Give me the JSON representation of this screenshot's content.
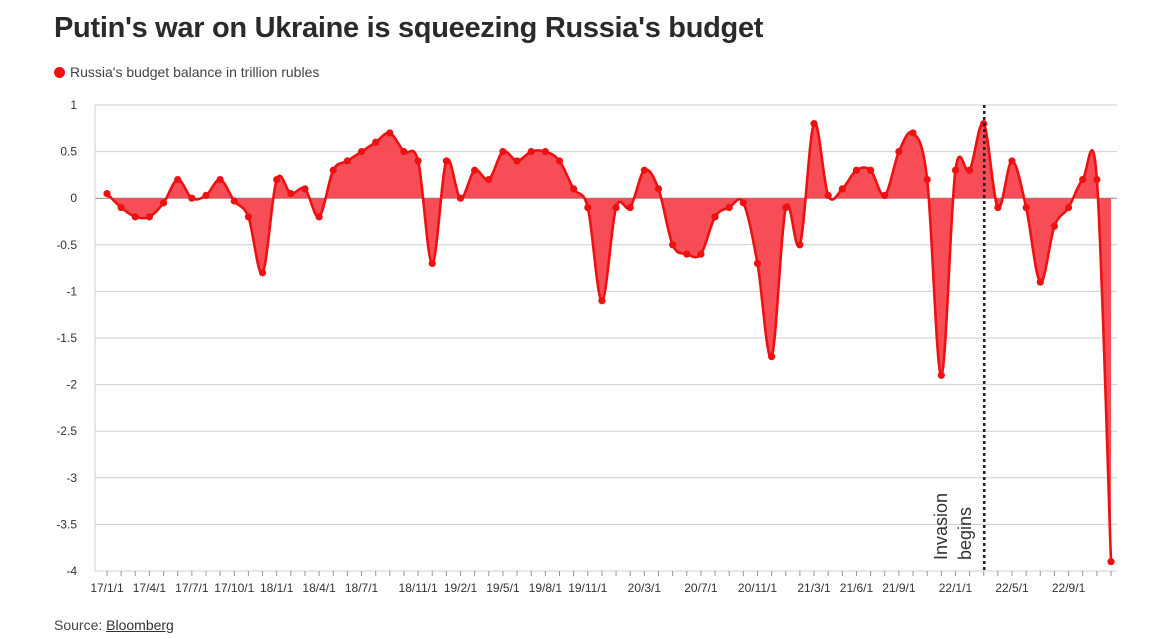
{
  "chart_data": {
    "type": "area",
    "title": "Putin's war on Ukraine is squeezing Russia's budget",
    "legend": "Russia's budget balance in trillion rubles",
    "source_label": "Source:",
    "source_name": "Bloomberg",
    "ylim": [
      -4,
      1
    ],
    "yticks": [
      1,
      0.5,
      0,
      -0.5,
      -1,
      -1.5,
      -2,
      -2.5,
      -3,
      -3.5,
      -4
    ],
    "ytick_labels": [
      "1",
      "0.5",
      "0",
      "-0.5",
      "-1",
      "-1.5",
      "-2",
      "-2.5",
      "-3",
      "-3.5",
      "-4"
    ],
    "xticks": [
      {
        "i": 0,
        "label": "17/1/1"
      },
      {
        "i": 3,
        "label": "17/4/1"
      },
      {
        "i": 6,
        "label": "17/7/1"
      },
      {
        "i": 9,
        "label": "17/10/1"
      },
      {
        "i": 12,
        "label": "18/1/1"
      },
      {
        "i": 15,
        "label": "18/4/1"
      },
      {
        "i": 18,
        "label": "18/7/1"
      },
      {
        "i": 22,
        "label": "18/11/1"
      },
      {
        "i": 25,
        "label": "19/2/1"
      },
      {
        "i": 28,
        "label": "19/5/1"
      },
      {
        "i": 31,
        "label": "19/8/1"
      },
      {
        "i": 34,
        "label": "19/11/1"
      },
      {
        "i": 38,
        "label": "20/3/1"
      },
      {
        "i": 42,
        "label": "20/7/1"
      },
      {
        "i": 46,
        "label": "20/11/1"
      },
      {
        "i": 50,
        "label": "21/3/1"
      },
      {
        "i": 53,
        "label": "21/6/1"
      },
      {
        "i": 56,
        "label": "21/9/1"
      },
      {
        "i": 60,
        "label": "22/1/1"
      },
      {
        "i": 64,
        "label": "22/5/1"
      },
      {
        "i": 68,
        "label": "22/9/1"
      }
    ],
    "series": [
      {
        "name": "Russia's budget balance in trillion rubles",
        "values": [
          0.05,
          -0.1,
          -0.2,
          -0.2,
          -0.05,
          0.2,
          0.0,
          0.03,
          0.2,
          -0.03,
          -0.2,
          -0.8,
          0.2,
          0.05,
          0.1,
          -0.2,
          0.3,
          0.4,
          0.5,
          0.6,
          0.7,
          0.5,
          0.4,
          -0.7,
          0.4,
          0.0,
          0.3,
          0.2,
          0.5,
          0.4,
          0.5,
          0.5,
          0.4,
          0.1,
          -0.1,
          -1.1,
          -0.1,
          -0.1,
          0.3,
          0.1,
          -0.5,
          -0.6,
          -0.6,
          -0.2,
          -0.1,
          -0.05,
          -0.7,
          -1.7,
          -0.1,
          -0.5,
          0.8,
          0.03,
          0.1,
          0.3,
          0.3,
          0.03,
          0.5,
          0.7,
          0.2,
          -1.9,
          0.3,
          0.3,
          0.8,
          -0.1,
          0.4,
          -0.1,
          -0.9,
          -0.3,
          -0.1,
          0.2,
          0.2,
          -3.9
        ]
      }
    ],
    "annotation": {
      "index": 62,
      "lines": [
        "Invasion",
        "begins"
      ]
    },
    "colors": {
      "line": "#ee1111",
      "fill": "#f5434d",
      "marker": "#ee1111",
      "grid": "#cfcfcf",
      "zero": "#8a8a8a",
      "annotation": "#222222"
    }
  }
}
